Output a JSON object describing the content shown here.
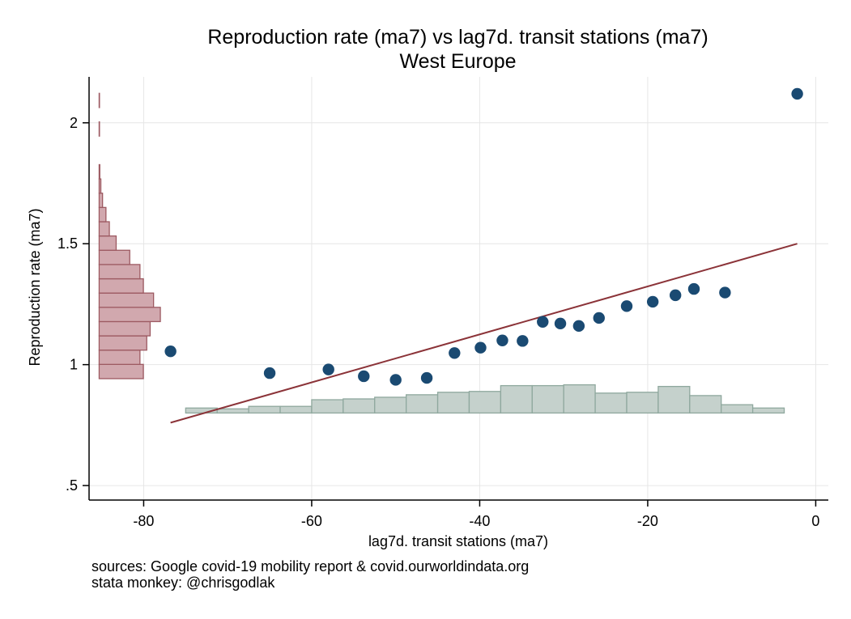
{
  "chart_data": {
    "type": "scatter",
    "title": "Reproduction rate (ma7) vs lag7d. transit stations (ma7)",
    "subtitle": "West Europe",
    "xlabel": "lag7d. transit stations (ma7)",
    "ylabel": "Reproduction rate (ma7)",
    "xlim": [
      -86.5,
      1.5
    ],
    "ylim": [
      0.44,
      2.19
    ],
    "xticks": [
      -80,
      -60,
      -40,
      -20,
      0
    ],
    "xtick_labels": [
      "-80",
      "-60",
      "-40",
      "-20",
      "0"
    ],
    "yticks": [
      0.5,
      1,
      1.5,
      2
    ],
    "ytick_labels": [
      ".5",
      "1",
      "1.5",
      "2"
    ],
    "grid": true,
    "legend": "none",
    "colors": {
      "points": "#1a4a72",
      "fit_line": "#8b3338",
      "y_hist_fill": "#d1a8ae",
      "y_hist_edge": "#9d5a62",
      "x_hist_fill": "#c5d1cc",
      "x_hist_edge": "#8fa89e",
      "grid": "#e6e6e6"
    },
    "points": {
      "x": [
        -76.8,
        -65.0,
        -58.0,
        -53.8,
        -50.0,
        -46.3,
        -43.0,
        -39.9,
        -37.3,
        -34.9,
        -32.5,
        -30.4,
        -28.2,
        -25.8,
        -22.5,
        -19.4,
        -16.7,
        -14.5,
        -10.8,
        -2.2
      ],
      "y": [
        1.055,
        0.965,
        0.98,
        0.952,
        0.937,
        0.945,
        1.048,
        1.07,
        1.1,
        1.098,
        1.177,
        1.17,
        1.16,
        1.193,
        1.242,
        1.26,
        1.287,
        1.313,
        1.298,
        2.12
      ]
    },
    "fit_line": {
      "x": [
        -76.8,
        -2.2
      ],
      "y": [
        0.76,
        1.5
      ]
    },
    "y_histogram": {
      "bin_width": 0.059,
      "bin_lows": [
        0.942,
        1.001,
        1.06,
        1.119,
        1.178,
        1.237,
        1.296,
        1.355,
        1.414,
        1.473,
        1.532,
        1.591,
        1.65,
        1.709,
        1.768,
        1.827,
        1.886,
        1.945,
        2.004,
        2.063
      ],
      "density": [
        1.3,
        1.2,
        1.4,
        1.5,
        1.8,
        1.6,
        1.3,
        1.2,
        0.9,
        0.5,
        0.3,
        0.2,
        0.1,
        0.05,
        0.02,
        0.0,
        0.0,
        0.01,
        0.0,
        0.01
      ]
    },
    "x_histogram": {
      "bin_width": 3.75,
      "bin_lows": [
        -75.0,
        -71.25,
        -67.5,
        -63.75,
        -60.0,
        -56.25,
        -52.5,
        -48.75,
        -45.0,
        -41.25,
        -37.5,
        -33.75,
        -30.0,
        -26.25,
        -22.5,
        -18.75,
        -15.0,
        -11.25,
        -7.5
      ],
      "density": [
        0.3,
        0.25,
        0.4,
        0.4,
        0.8,
        0.85,
        0.95,
        1.1,
        1.25,
        1.3,
        1.65,
        1.65,
        1.7,
        1.2,
        1.25,
        1.6,
        1.05,
        0.5,
        0.3
      ]
    }
  },
  "footer": {
    "sources": "sources: Google covid-19 mobility report & covid.ourworldindata.org",
    "credit": "stata monkey: @chrisgodlak"
  }
}
